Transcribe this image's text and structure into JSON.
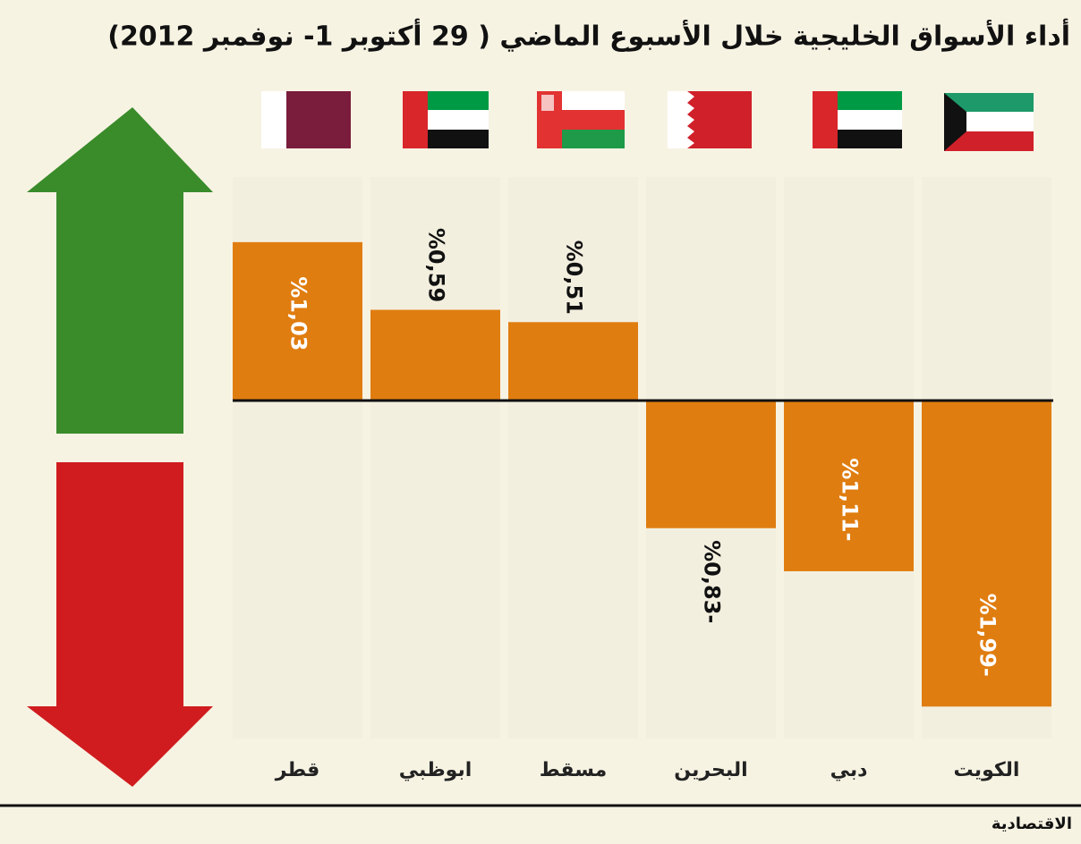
{
  "chart_data": {
    "type": "bar",
    "title": "أداء الأسواق الخليجية خلال الأسبوع الماضي ( 29 أكتوبر 1- نوفمبر 2012)",
    "categories": [
      "قطر",
      "ابوظبي",
      "مسقط",
      "البحرين",
      "دبي",
      "الكويت"
    ],
    "values": [
      1.03,
      0.59,
      0.51,
      -0.83,
      -1.11,
      -1.99
    ],
    "value_labels": [
      "%1,03",
      "%0,59",
      "%0,51",
      "%0,83-",
      "%1,11-",
      "%1,99-"
    ],
    "color": "#e07d10",
    "source": "الاقتصادية"
  }
}
